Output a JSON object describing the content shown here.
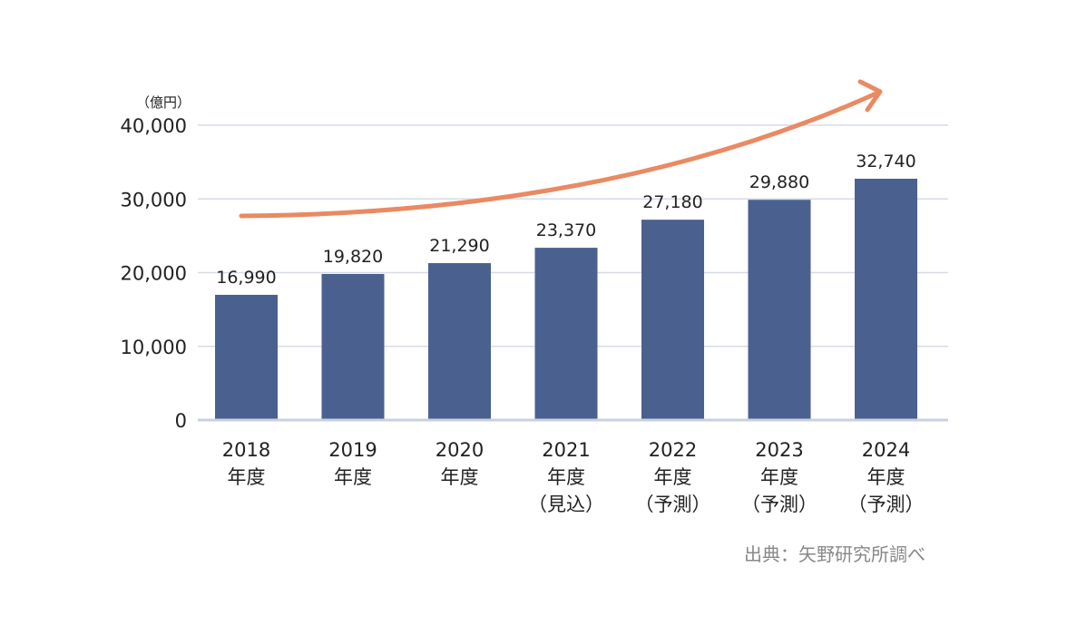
{
  "chart_data": {
    "type": "bar",
    "y_unit_label": "（億円）",
    "categories": [
      [
        "2018",
        "年度"
      ],
      [
        "2019",
        "年度"
      ],
      [
        "2020",
        "年度"
      ],
      [
        "2021",
        "年度",
        "（見込）"
      ],
      [
        "2022",
        "年度",
        "（予測）"
      ],
      [
        "2023",
        "年度",
        "（予測）"
      ],
      [
        "2024",
        "年度",
        "（予測）"
      ]
    ],
    "values": [
      16990,
      19820,
      21290,
      23370,
      27180,
      29880,
      32740
    ],
    "value_labels": [
      "16,990",
      "19,820",
      "21,290",
      "23,370",
      "27,180",
      "29,880",
      "32,740"
    ],
    "ylim": [
      0,
      40000
    ],
    "yticks": [
      0,
      10000,
      20000,
      30000,
      40000
    ],
    "ytick_labels": [
      "0",
      "10,000",
      "20,000",
      "30,000",
      "40,000"
    ],
    "grid": true,
    "trend_arrow": true,
    "source": "出典：矢野研究所調べ",
    "colors": {
      "bar": "#4a6190",
      "grid": "#d5dbe6",
      "axis": "#c9d1e0",
      "arrow": "#e98a63",
      "source": "#888888"
    }
  }
}
